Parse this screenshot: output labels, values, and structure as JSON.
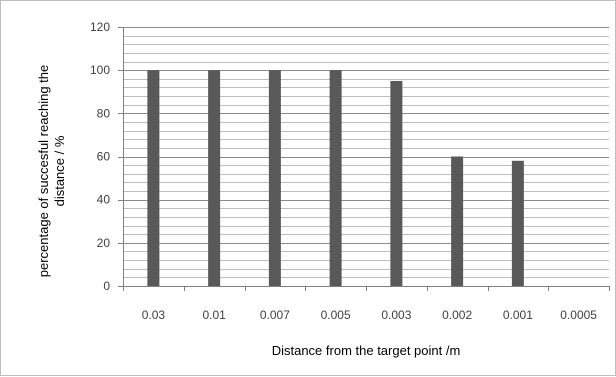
{
  "chart_data": {
    "type": "bar",
    "title": "",
    "xlabel": "Distance from the target point /m",
    "ylabel_line1": "percentage of succesful reaching the",
    "ylabel_line2": "distance / %",
    "categories": [
      "0.03",
      "0.01",
      "0.007",
      "0.005",
      "0.003",
      "0.002",
      "0.001",
      "0.0005"
    ],
    "values": [
      100,
      100,
      100,
      100,
      95,
      60,
      58,
      0
    ],
    "ylim": [
      0,
      120
    ],
    "yticks": [
      "0",
      "20",
      "40",
      "60",
      "80",
      "100",
      "120"
    ],
    "major_step": 20,
    "minor_step": 4,
    "grid": true,
    "legend": "none",
    "bar_color": "#595959"
  }
}
